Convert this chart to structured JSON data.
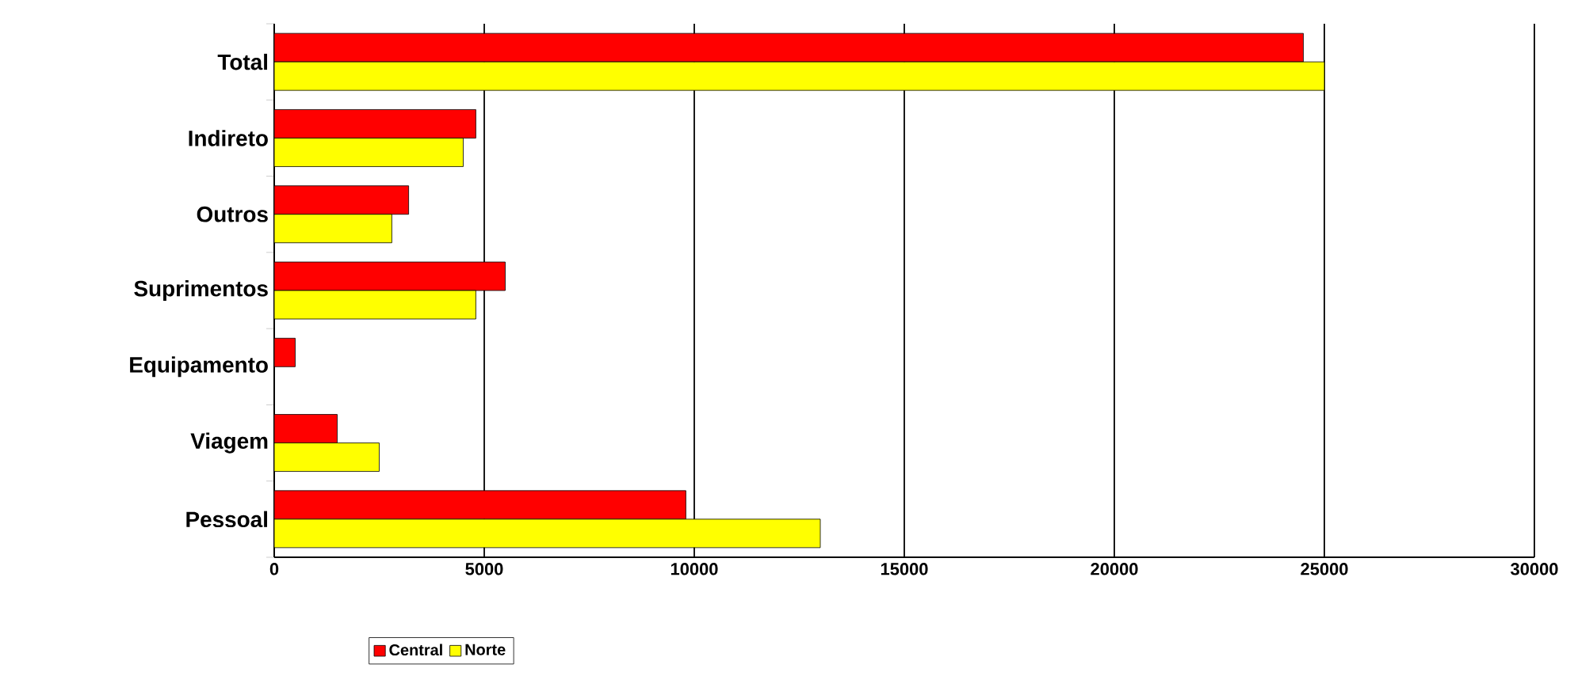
{
  "chart_data": {
    "type": "bar",
    "orientation": "horizontal",
    "categories": [
      "Total",
      "Indireto",
      "Outros",
      "Suprimentos",
      "Equipamento",
      "Viagem",
      "Pessoal"
    ],
    "series": [
      {
        "name": "Central",
        "color": "#ff0000",
        "values": [
          24500,
          4800,
          3200,
          5500,
          500,
          1500,
          9800
        ]
      },
      {
        "name": "Norte",
        "color": "#ffff00",
        "values": [
          25000,
          4500,
          2800,
          4800,
          0,
          2500,
          13000
        ]
      }
    ],
    "xlim": [
      0,
      30000
    ],
    "xticks": [
      0,
      5000,
      10000,
      15000,
      20000,
      25000,
      30000
    ],
    "grid": "x",
    "legend": "bottom"
  }
}
